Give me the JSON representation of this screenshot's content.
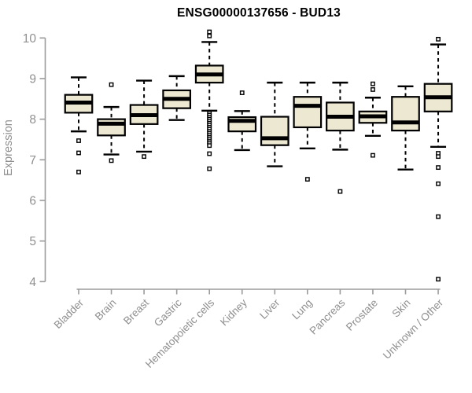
{
  "chart_data": {
    "type": "boxplot",
    "title": "ENSG00000137656 - BUD13",
    "ylabel": "Expression",
    "xlabel": "",
    "ylim": [
      4,
      10
    ],
    "yticks": [
      4,
      5,
      6,
      7,
      8,
      9,
      10
    ],
    "grid": false,
    "legend": "none",
    "categories": [
      "Bladder",
      "Brain",
      "Breast",
      "Gastric",
      "Hematopoietic cells",
      "Kidney",
      "Liver",
      "Lung",
      "Pancreas",
      "Prostate",
      "Skin",
      "Unknown / Other"
    ],
    "series": [
      {
        "category": "Bladder",
        "whisker_low": 7.7,
        "q1": 8.16,
        "median": 8.41,
        "q3": 8.6,
        "whisker_high": 9.03,
        "outliers": [
          7.47,
          7.17,
          6.7
        ]
      },
      {
        "category": "Brain",
        "whisker_low": 7.13,
        "q1": 7.6,
        "median": 7.89,
        "q3": 8.0,
        "whisker_high": 8.3,
        "outliers": [
          8.85,
          6.98
        ]
      },
      {
        "category": "Breast",
        "whisker_low": 7.2,
        "q1": 7.88,
        "median": 8.1,
        "q3": 8.35,
        "whisker_high": 8.95,
        "outliers": [
          7.08
        ]
      },
      {
        "category": "Gastric",
        "whisker_low": 7.98,
        "q1": 8.27,
        "median": 8.5,
        "q3": 8.71,
        "whisker_high": 9.06,
        "outliers": []
      },
      {
        "category": "Hematopoietic cells",
        "whisker_low": 8.21,
        "q1": 8.9,
        "median": 9.1,
        "q3": 9.32,
        "whisker_high": 9.9,
        "outliers": [
          10.15,
          10.05,
          8.15,
          8.1,
          8.05,
          8.0,
          7.95,
          7.9,
          7.85,
          7.8,
          7.75,
          7.7,
          7.65,
          7.6,
          7.55,
          7.5,
          7.45,
          7.4,
          7.35,
          7.15,
          6.78
        ]
      },
      {
        "category": "Kidney",
        "whisker_low": 7.24,
        "q1": 7.7,
        "median": 7.96,
        "q3": 8.05,
        "whisker_high": 8.2,
        "outliers": [
          8.65
        ]
      },
      {
        "category": "Liver",
        "whisker_low": 6.84,
        "q1": 7.36,
        "median": 7.53,
        "q3": 8.06,
        "whisker_high": 8.9,
        "outliers": []
      },
      {
        "category": "Lung",
        "whisker_low": 7.28,
        "q1": 7.8,
        "median": 8.33,
        "q3": 8.55,
        "whisker_high": 8.9,
        "outliers": [
          6.52
        ]
      },
      {
        "category": "Pancreas",
        "whisker_low": 7.25,
        "q1": 7.72,
        "median": 8.06,
        "q3": 8.41,
        "whisker_high": 8.9,
        "outliers": [
          6.22
        ]
      },
      {
        "category": "Prostate",
        "whisker_low": 7.59,
        "q1": 7.91,
        "median": 8.07,
        "q3": 8.19,
        "whisker_high": 8.53,
        "outliers": [
          8.87,
          8.73,
          7.11
        ]
      },
      {
        "category": "Skin",
        "whisker_low": 6.76,
        "q1": 7.72,
        "median": 7.92,
        "q3": 8.55,
        "whisker_high": 8.81,
        "outliers": []
      },
      {
        "category": "Unknown / Other",
        "whisker_low": 7.32,
        "q1": 8.19,
        "median": 8.54,
        "q3": 8.87,
        "whisker_high": 9.84,
        "outliers": [
          9.97,
          7.16,
          7.08,
          6.81,
          6.41,
          5.6,
          4.06
        ]
      }
    ],
    "colors": {
      "box_fill": "#EDE8D1",
      "box_stroke": "#000000",
      "median": "#000000",
      "outlier_fill": "#FFFFFF",
      "axis": "#9B9B9B",
      "label": "#8F8F8F",
      "title": "#000000",
      "background": "#FFFFFF"
    }
  }
}
